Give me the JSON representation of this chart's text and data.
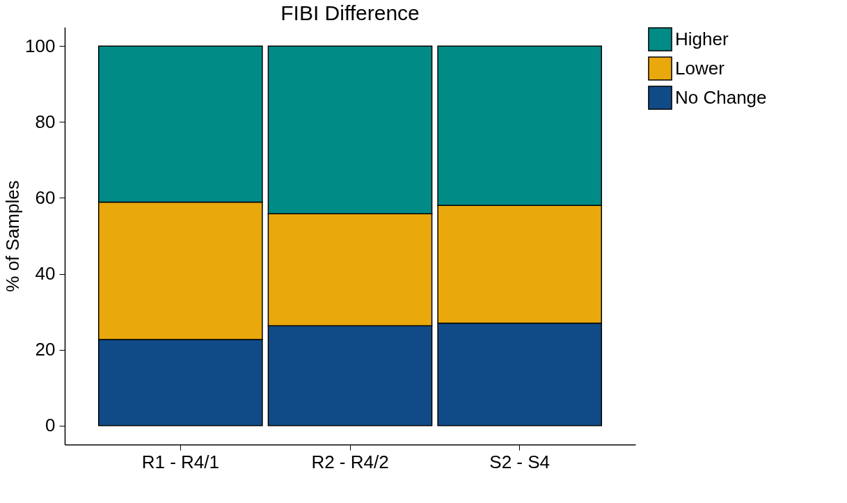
{
  "chart_data": {
    "type": "bar",
    "title": "FIBI Difference",
    "ylabel": "% of Samples",
    "categories": [
      "R1 - R4/1",
      "R2 - R4/2",
      "S2 - S4"
    ],
    "stacked": true,
    "ylim": [
      -5,
      105
    ],
    "yticks": [
      0,
      20,
      40,
      60,
      80,
      100
    ],
    "grid": false,
    "legend": "right",
    "series": [
      {
        "name": "No Change",
        "color": "#114b87",
        "values": [
          22.7,
          26.3,
          27.0
        ]
      },
      {
        "name": "Lower",
        "color": "#e9a80c",
        "values": [
          36.2,
          29.5,
          31.0
        ]
      },
      {
        "name": "Higher",
        "color": "#008b87",
        "values": [
          41.1,
          44.2,
          42.0
        ]
      }
    ]
  }
}
